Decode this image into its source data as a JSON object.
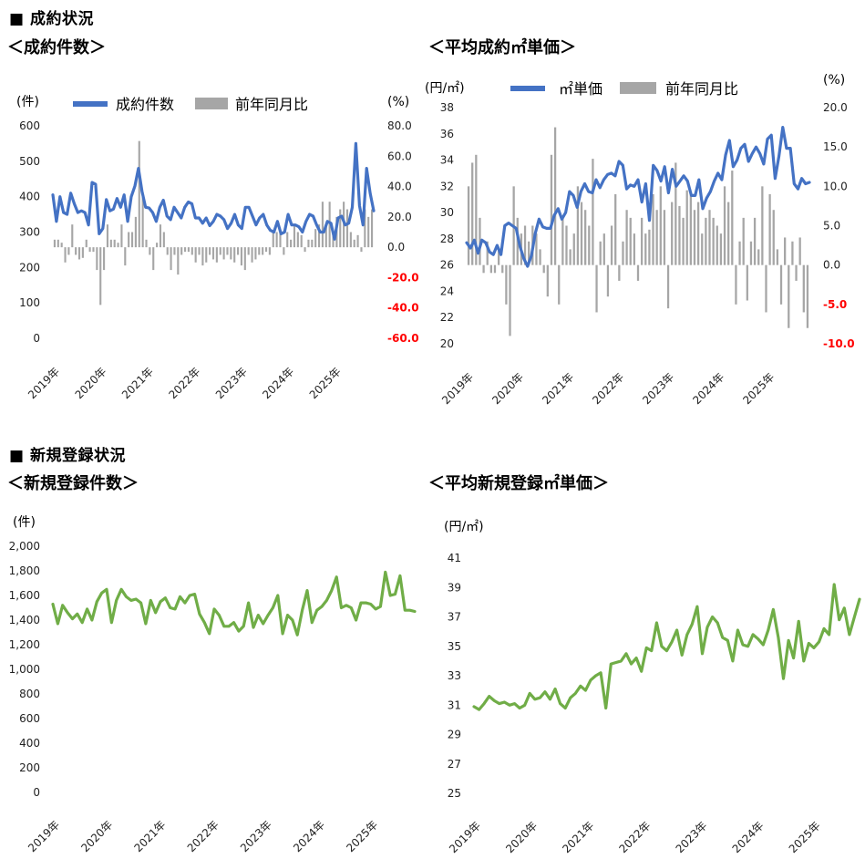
{
  "sections": {
    "contract": "■ 成約状況",
    "registration": "■ 新規登録状況"
  },
  "chart_data": [
    {
      "type": "bar+line",
      "title": "＜成約件数＞",
      "ylabel": "(件)",
      "y2label": "(%)",
      "ylim": [
        0,
        600
      ],
      "yticks": [
        "600",
        "500",
        "400",
        "300",
        "200",
        "100",
        "0"
      ],
      "y2lim": [
        -60,
        80
      ],
      "y2ticks": [
        "80.0",
        "60.0",
        "40.0",
        "20.0",
        "0.0",
        "-20.0",
        "-40.0",
        "-60.0"
      ],
      "x_ticks": [
        "2019年",
        "2020年",
        "2021年",
        "2022年",
        "2023年",
        "2024年",
        "2025年"
      ],
      "legend": [
        "成約件数",
        "前年同月比"
      ],
      "colors": {
        "line": "#4472C4",
        "bar": "#A6A6A6",
        "negative_tick": "#FF0000"
      },
      "series": [
        {
          "name": "成約件数",
          "kind": "line",
          "values": [
            405,
            330,
            400,
            355,
            350,
            410,
            380,
            355,
            360,
            355,
            320,
            440,
            435,
            295,
            310,
            392,
            360,
            365,
            395,
            370,
            405,
            330,
            400,
            430,
            480,
            415,
            370,
            368,
            355,
            330,
            370,
            390,
            345,
            335,
            370,
            355,
            340,
            370,
            385,
            380,
            340,
            340,
            325,
            340,
            318,
            330,
            350,
            345,
            335,
            310,
            325,
            350,
            320,
            310,
            370,
            370,
            345,
            320,
            340,
            350,
            320,
            305,
            300,
            330,
            295,
            300,
            350,
            320,
            320,
            315,
            300,
            330,
            350,
            345,
            320,
            300,
            300,
            330,
            325,
            280,
            340,
            345,
            320,
            325,
            370,
            550,
            375,
            320,
            480,
            410,
            360
          ],
          "ylim": [
            0,
            600
          ]
        },
        {
          "name": "前年同月比",
          "kind": "bar",
          "values": [
            5.0,
            5.0,
            3.0,
            -10.0,
            -5.0,
            15.0,
            -5.0,
            -8.0,
            -7.0,
            5.0,
            -3.0,
            -3.0,
            -15.0,
            -38.0,
            -15.0,
            15.0,
            5.0,
            5.0,
            3.0,
            15.0,
            -12.0,
            10.0,
            10.0,
            20.0,
            70.0,
            35.0,
            5.0,
            -5.0,
            -15.0,
            3.0,
            15.0,
            10.0,
            -5.0,
            -15.0,
            -5.0,
            -18.0,
            -5.0,
            -3.0,
            -3.0,
            -5.0,
            -10.0,
            -5.0,
            -12.0,
            -10.0,
            -5.0,
            -8.0,
            -10.0,
            -5.0,
            -8.0,
            -5.0,
            -8.0,
            -10.0,
            -5.0,
            -12.0,
            -15.0,
            -5.0,
            -10.0,
            -8.0,
            -5.0,
            -5.0,
            -3.0,
            -5.0,
            10.0,
            10.0,
            10.0,
            -5.0,
            10.0,
            5.0,
            15.0,
            10.0,
            8.0,
            -3.0,
            5.0,
            5.0,
            12.0,
            15.0,
            30.0,
            15.0,
            30.0,
            10.0,
            20.0,
            25.0,
            30.0,
            25.0,
            10.0,
            5.0,
            8.0,
            -3.0,
            25.0,
            20.0,
            25.0
          ],
          "ylim": [
            -60,
            80
          ]
        }
      ]
    },
    {
      "type": "bar+line",
      "title": "＜平均成約㎡単価＞",
      "ylabel": "(円/㎡)",
      "y2label": "(%)",
      "ylim": [
        20,
        38
      ],
      "yticks": [
        "38",
        "36",
        "34",
        "32",
        "30",
        "28",
        "26",
        "24",
        "22",
        "20"
      ],
      "y2lim": [
        -10,
        20
      ],
      "y2ticks": [
        "20.0",
        "15.0",
        "10.0",
        "5.0",
        "0.0",
        "-5.0",
        "-10.0"
      ],
      "x_ticks": [
        "2019年",
        "2020年",
        "2021年",
        "2022年",
        "2023年",
        "2024年",
        "2025年"
      ],
      "legend": [
        "㎡単価",
        "前年同月比"
      ],
      "colors": {
        "line": "#4472C4",
        "bar": "#A6A6A6",
        "negative_tick": "#FF0000"
      },
      "series": [
        {
          "name": "㎡単価",
          "kind": "line",
          "values": [
            27.7,
            27.3,
            27.9,
            26.9,
            27.9,
            27.7,
            27.0,
            26.8,
            27.5,
            26.8,
            29.0,
            29.2,
            29.0,
            28.8,
            27.4,
            26.5,
            25.9,
            26.7,
            28.4,
            29.5,
            28.9,
            28.8,
            28.8,
            29.8,
            30.3,
            29.5,
            30.0,
            31.6,
            31.3,
            30.4,
            31.6,
            32.2,
            31.6,
            31.5,
            32.5,
            31.9,
            32.5,
            32.9,
            33.0,
            32.8,
            33.9,
            33.6,
            31.8,
            32.1,
            32.0,
            32.5,
            30.8,
            32.2,
            29.4,
            33.6,
            33.2,
            32.4,
            33.5,
            31.5,
            33.3,
            32.0,
            32.4,
            32.8,
            32.4,
            31.3,
            31.3,
            32.5,
            30.3,
            31.1,
            31.6,
            32.4,
            33.0,
            32.5,
            34.4,
            35.5,
            33.5,
            34.0,
            34.9,
            35.2,
            33.9,
            34.5,
            35.0,
            34.5,
            33.7,
            35.6,
            35.9,
            32.6,
            34.3,
            36.5,
            34.9,
            34.9,
            32.2,
            31.8,
            32.6,
            32.2,
            32.3
          ],
          "ylim": [
            20,
            38
          ]
        },
        {
          "name": "前年同月比",
          "kind": "bar",
          "values": [
            10.0,
            13.0,
            14.0,
            6.0,
            -1.0,
            3.0,
            -1.0,
            -1.0,
            2.0,
            -1.0,
            -5.0,
            -9.0,
            10.0,
            6.0,
            4.0,
            5.0,
            3.0,
            5.0,
            4.0,
            2.0,
            -1.0,
            -4.0,
            14.0,
            17.5,
            -5.0,
            6.0,
            5.0,
            2.0,
            4.0,
            10.0,
            8.0,
            7.0,
            5.0,
            13.5,
            -6.0,
            3.0,
            4.0,
            -4.0,
            5.0,
            9.0,
            -2.0,
            3.0,
            7.0,
            6.0,
            4.0,
            -2.0,
            6.0,
            4.0,
            4.5,
            9.0,
            7.0,
            10.0,
            7.0,
            -5.5,
            8.0,
            13.0,
            7.5,
            6.0,
            9.5,
            9.0,
            7.0,
            8.0,
            4.0,
            6.0,
            7.0,
            6.0,
            5.0,
            4.0,
            10.0,
            8.0,
            12.0,
            -5.0,
            3.0,
            6.0,
            -4.5,
            3.0,
            6.0,
            2.0,
            10.0,
            -6.0,
            9.0,
            7.0,
            2.0,
            -5.0,
            3.5,
            -8.0,
            3.0,
            -2.0,
            3.5,
            -6.0,
            -8.0
          ],
          "ylim": [
            -10,
            20
          ]
        }
      ]
    },
    {
      "type": "line",
      "title": "＜新規登録件数＞",
      "ylabel": "(件)",
      "ylim": [
        0,
        2000
      ],
      "yticks": [
        "2,000",
        "1,800",
        "1,600",
        "1,400",
        "1,200",
        "1,000",
        "800",
        "600",
        "400",
        "200",
        "0"
      ],
      "x_ticks": [
        "2019年",
        "2020年",
        "2021年",
        "2022年",
        "2023年",
        "2024年",
        "2025年"
      ],
      "colors": {
        "line": "#70AD47"
      },
      "series": [
        {
          "name": "新規登録件数",
          "kind": "line",
          "values": [
            1530,
            1370,
            1520,
            1460,
            1410,
            1450,
            1380,
            1490,
            1400,
            1550,
            1620,
            1650,
            1380,
            1560,
            1650,
            1590,
            1560,
            1570,
            1540,
            1370,
            1560,
            1460,
            1550,
            1580,
            1500,
            1490,
            1590,
            1540,
            1600,
            1610,
            1450,
            1380,
            1290,
            1490,
            1440,
            1350,
            1350,
            1380,
            1310,
            1350,
            1540,
            1340,
            1440,
            1370,
            1440,
            1500,
            1600,
            1290,
            1440,
            1400,
            1280,
            1480,
            1640,
            1380,
            1480,
            1510,
            1560,
            1640,
            1750,
            1500,
            1520,
            1500,
            1400,
            1540,
            1540,
            1530,
            1490,
            1510,
            1790,
            1600,
            1610,
            1760,
            1480,
            1480,
            1470
          ],
          "ylim": [
            0,
            2000
          ]
        }
      ]
    },
    {
      "type": "line",
      "title": "＜平均新規登録㎡単価＞",
      "ylabel": "(円/㎡)",
      "ylim": [
        25,
        41
      ],
      "yticks": [
        "41",
        "39",
        "37",
        "35",
        "33",
        "31",
        "29",
        "27",
        "25"
      ],
      "x_ticks": [
        "2019年",
        "2020年",
        "2021年",
        "2022年",
        "2023年",
        "2024年",
        "2025年"
      ],
      "colors": {
        "line": "#70AD47"
      },
      "series": [
        {
          "name": "平均新規登録㎡単価",
          "kind": "line",
          "values": [
            30.9,
            30.7,
            31.1,
            31.6,
            31.3,
            31.1,
            31.2,
            31.0,
            31.1,
            30.8,
            31.0,
            31.8,
            31.4,
            31.5,
            31.9,
            31.4,
            32.1,
            31.1,
            30.8,
            31.5,
            31.8,
            32.3,
            32.0,
            32.7,
            33.0,
            33.2,
            30.8,
            33.8,
            33.9,
            34.0,
            34.5,
            33.8,
            34.2,
            33.3,
            34.9,
            34.7,
            36.6,
            35.0,
            34.7,
            35.3,
            36.1,
            34.4,
            35.8,
            36.5,
            37.7,
            34.5,
            36.3,
            37.0,
            36.6,
            35.6,
            35.4,
            34.0,
            36.1,
            35.1,
            35.0,
            35.8,
            35.5,
            35.1,
            36.1,
            37.5,
            35.6,
            32.8,
            35.4,
            34.2,
            36.7,
            34.0,
            35.2,
            34.9,
            35.3,
            36.2,
            35.8,
            39.2,
            36.8,
            37.6,
            35.8,
            37.0,
            38.2
          ],
          "ylim": [
            25,
            41
          ]
        }
      ]
    }
  ]
}
